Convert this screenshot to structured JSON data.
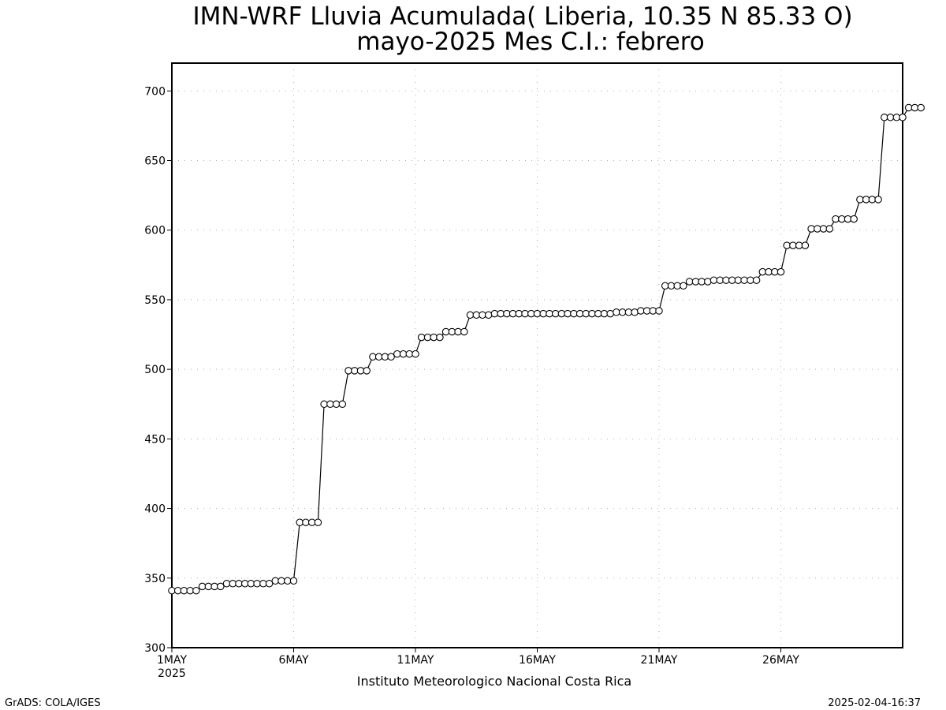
{
  "chart_data": {
    "type": "line",
    "title": "IMN-WRF  Lluvia Acumulada( Liberia, 10.35  N 85.33  O)",
    "subtitle": "mayo-2025 Mes C.I.: febrero",
    "xlabel": "",
    "ylabel": "",
    "credit": "Instituto Meteorologico Nacional Costa Rica",
    "ylim": [
      300,
      720
    ],
    "xlim": [
      "2025-05-01T00",
      "2025-05-31T00"
    ],
    "grid": true,
    "yticks": [
      "300",
      "350",
      "400",
      "450",
      "500",
      "550",
      "600",
      "650",
      "700"
    ],
    "xticks": [
      "1MAY",
      "6MAY",
      "11MAY",
      "16MAY",
      "21MAY",
      "26MAY"
    ],
    "xtick_year": "2025",
    "series": [
      {
        "values": [
          341,
          341,
          341,
          341,
          341,
          344,
          344,
          344,
          344,
          346,
          346,
          346,
          346,
          346,
          346,
          346,
          346,
          348,
          348,
          348,
          348,
          390,
          390,
          390,
          390,
          475,
          475,
          475,
          475,
          499,
          499,
          499,
          499,
          509,
          509,
          509,
          509,
          511,
          511,
          511,
          511,
          523,
          523,
          523,
          523,
          527,
          527,
          527,
          527,
          539,
          539,
          539,
          539,
          540,
          540,
          540,
          540,
          540,
          540,
          540,
          540,
          540,
          540,
          540,
          540,
          540,
          540,
          540,
          540,
          540,
          540,
          540,
          540,
          541,
          541,
          541,
          541,
          542,
          542,
          542,
          542,
          560,
          560,
          560,
          560,
          563,
          563,
          563,
          563,
          564,
          564,
          564,
          564,
          564,
          564,
          564,
          564,
          570,
          570,
          570,
          570,
          589,
          589,
          589,
          589,
          601,
          601,
          601,
          601,
          608,
          608,
          608,
          608,
          622,
          622,
          622,
          622,
          681,
          681,
          681,
          681,
          688,
          688,
          688
        ]
      }
    ],
    "x_step_hours": 6
  },
  "footer": {
    "left": "GrADS: COLA/IGES",
    "right": "2025-02-04-16:37"
  }
}
